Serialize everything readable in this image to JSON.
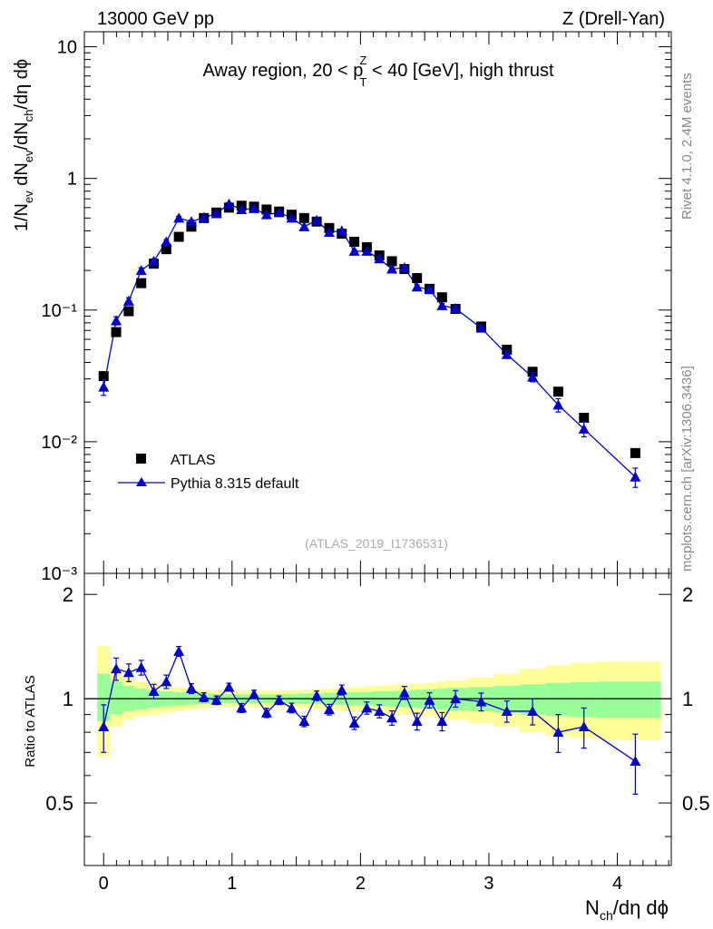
{
  "header": {
    "left": "13000 GeV pp",
    "right": "Z (Drell-Yan)"
  },
  "side_labels": {
    "rivet": "Rivet 4.1.0,  2.4M events",
    "mcplots": "mcplots.cern.ch [arXiv:1306.3436]"
  },
  "chart_data": [
    {
      "type": "scatter",
      "panel": "main",
      "title": "Away region, 20 < p_T^Z < 40 [GeV], high thrust",
      "title_parts": {
        "a": "Away region, 20 < p",
        "sup": "Z",
        "sub": "T",
        "b": " < 40 [GeV], high thrust"
      },
      "ylabel": "1/N_ev dN_ev/dN_ch/dη dϕ",
      "yscale": "log",
      "xlim": [
        -0.15,
        4.42
      ],
      "ylim": [
        0.001,
        13
      ],
      "y_tick_labels": [
        "10",
        "1",
        "10⁻¹",
        "10⁻²",
        "10⁻³"
      ],
      "watermark": "(ATLAS_2019_I1736531)",
      "legend": [
        "ATLAS",
        "Pythia 8.315 default"
      ],
      "legend_position": "lower-left",
      "colors": {
        "data": "#000000",
        "mc": "#0000cc"
      },
      "x": [
        0.0,
        0.0976,
        0.1952,
        0.2928,
        0.3904,
        0.488,
        0.5856,
        0.6832,
        0.7808,
        0.8784,
        0.976,
        1.0736,
        1.1712,
        1.2688,
        1.3664,
        1.464,
        1.5616,
        1.6592,
        1.7568,
        1.8544,
        1.952,
        2.0496,
        2.1472,
        2.2448,
        2.3424,
        2.44,
        2.5376,
        2.6352,
        2.74,
        2.94,
        3.14,
        3.34,
        3.54,
        3.74,
        4.14
      ],
      "series": [
        {
          "name": "ATLAS",
          "marker": "square",
          "values": [
            0.0315,
            0.068,
            0.098,
            0.16,
            0.225,
            0.29,
            0.36,
            0.43,
            0.5,
            0.55,
            0.6,
            0.62,
            0.61,
            0.58,
            0.56,
            0.53,
            0.5,
            0.47,
            0.42,
            0.38,
            0.33,
            0.3,
            0.26,
            0.235,
            0.205,
            0.175,
            0.145,
            0.125,
            0.102,
            0.075,
            0.05,
            0.034,
            0.024,
            0.0152,
            0.0082
          ]
        },
        {
          "name": "Pythia 8.315 default",
          "marker": "triangle",
          "values": [
            0.026,
            0.083,
            0.117,
            0.2,
            0.235,
            0.33,
            0.5,
            0.47,
            0.505,
            0.54,
            0.64,
            0.58,
            0.59,
            0.53,
            0.55,
            0.5,
            0.43,
            0.48,
            0.39,
            0.4,
            0.28,
            0.28,
            0.245,
            0.205,
            0.21,
            0.15,
            0.143,
            0.108,
            0.103,
            0.073,
            0.046,
            0.031,
            0.019,
            0.0125,
            0.0054
          ],
          "err_lo": [
            0.0035,
            0.006,
            0.007,
            0.009,
            0.01,
            0.013,
            0.015,
            0.013,
            0.013,
            0.014,
            0.015,
            0.014,
            0.014,
            0.013,
            0.013,
            0.012,
            0.011,
            0.012,
            0.01,
            0.01,
            0.008,
            0.008,
            0.007,
            0.006,
            0.006,
            0.005,
            0.005,
            0.004,
            0.004,
            0.003,
            0.003,
            0.0025,
            0.0022,
            0.0016,
            0.0009
          ],
          "err_hi": [
            0.0035,
            0.006,
            0.007,
            0.009,
            0.01,
            0.013,
            0.015,
            0.013,
            0.013,
            0.014,
            0.015,
            0.014,
            0.014,
            0.013,
            0.013,
            0.012,
            0.011,
            0.012,
            0.01,
            0.01,
            0.008,
            0.008,
            0.007,
            0.006,
            0.006,
            0.005,
            0.005,
            0.004,
            0.004,
            0.003,
            0.003,
            0.0025,
            0.0022,
            0.0016,
            0.0009
          ]
        }
      ]
    },
    {
      "type": "scatter",
      "panel": "ratio",
      "ylabel": "Ratio to ATLAS",
      "xlabel": "N_ch/dη dϕ",
      "xlim": [
        -0.15,
        4.42
      ],
      "ylim": [
        0.33,
        2.3
      ],
      "y_ticks": [
        0.5,
        1,
        2
      ],
      "y_tick_labels": [
        "0.5",
        "1",
        "2"
      ],
      "x_ticks": [
        0,
        1,
        2,
        3,
        4
      ],
      "x_tick_labels": [
        "0",
        "1",
        "2",
        "3",
        "4"
      ],
      "reference_line": 1,
      "colors": {
        "band_outer": "#ffff99",
        "band_inner": "#99ff99",
        "mc": "#0000cc",
        "line": "#000000"
      },
      "bands": {
        "x_edges": [
          -0.05,
          0.05,
          0.15,
          0.24,
          0.34,
          0.44,
          0.54,
          0.63,
          0.73,
          0.83,
          0.93,
          1.02,
          1.12,
          1.22,
          1.32,
          1.41,
          1.51,
          1.61,
          1.71,
          1.81,
          1.9,
          2.0,
          2.1,
          2.2,
          2.29,
          2.39,
          2.49,
          2.59,
          2.68,
          2.84,
          3.04,
          3.24,
          3.44,
          3.64,
          3.84,
          4.34
        ],
        "inner_lo": [
          0.86,
          0.9,
          0.92,
          0.93,
          0.94,
          0.95,
          0.955,
          0.96,
          0.965,
          0.97,
          0.97,
          0.97,
          0.97,
          0.97,
          0.97,
          0.97,
          0.965,
          0.965,
          0.96,
          0.96,
          0.955,
          0.955,
          0.95,
          0.95,
          0.945,
          0.94,
          0.935,
          0.93,
          0.925,
          0.92,
          0.91,
          0.9,
          0.89,
          0.885,
          0.88
        ],
        "inner_hi": [
          1.18,
          1.12,
          1.09,
          1.07,
          1.06,
          1.05,
          1.045,
          1.04,
          1.035,
          1.03,
          1.03,
          1.03,
          1.03,
          1.03,
          1.03,
          1.03,
          1.035,
          1.035,
          1.04,
          1.04,
          1.045,
          1.045,
          1.05,
          1.05,
          1.055,
          1.06,
          1.065,
          1.07,
          1.075,
          1.08,
          1.09,
          1.1,
          1.11,
          1.115,
          1.12
        ],
        "outer_lo": [
          0.68,
          0.83,
          0.87,
          0.89,
          0.9,
          0.91,
          0.92,
          0.93,
          0.94,
          0.945,
          0.945,
          0.945,
          0.945,
          0.945,
          0.945,
          0.945,
          0.94,
          0.935,
          0.93,
          0.925,
          0.92,
          0.915,
          0.91,
          0.905,
          0.9,
          0.895,
          0.89,
          0.88,
          0.87,
          0.85,
          0.83,
          0.8,
          0.78,
          0.77,
          0.76
        ],
        "outer_hi": [
          1.42,
          1.23,
          1.16,
          1.12,
          1.1,
          1.09,
          1.08,
          1.07,
          1.06,
          1.055,
          1.055,
          1.055,
          1.055,
          1.055,
          1.055,
          1.055,
          1.06,
          1.065,
          1.07,
          1.075,
          1.08,
          1.085,
          1.09,
          1.095,
          1.1,
          1.105,
          1.11,
          1.12,
          1.13,
          1.15,
          1.18,
          1.22,
          1.25,
          1.27,
          1.28
        ]
      },
      "series": [
        {
          "name": "Pythia 8.315 default / ATLAS",
          "marker": "triangle",
          "values": [
            0.83,
            1.22,
            1.19,
            1.23,
            1.05,
            1.12,
            1.37,
            1.07,
            1.01,
            0.99,
            1.08,
            0.94,
            1.03,
            0.91,
            0.99,
            0.94,
            0.86,
            1.02,
            0.93,
            1.06,
            0.85,
            0.94,
            0.92,
            0.88,
            1.04,
            0.86,
            0.99,
            0.86,
            1.0,
            0.98,
            0.92,
            0.92,
            0.8,
            0.83,
            0.66
          ],
          "err_lo": [
            0.13,
            0.09,
            0.07,
            0.06,
            0.05,
            0.05,
            0.045,
            0.035,
            0.03,
            0.028,
            0.028,
            0.028,
            0.028,
            0.028,
            0.028,
            0.03,
            0.03,
            0.032,
            0.033,
            0.035,
            0.035,
            0.038,
            0.04,
            0.042,
            0.045,
            0.048,
            0.05,
            0.052,
            0.055,
            0.058,
            0.065,
            0.08,
            0.1,
            0.11,
            0.13
          ],
          "err_hi": [
            0.13,
            0.09,
            0.07,
            0.06,
            0.05,
            0.05,
            0.045,
            0.035,
            0.03,
            0.028,
            0.028,
            0.028,
            0.028,
            0.028,
            0.028,
            0.03,
            0.03,
            0.032,
            0.033,
            0.035,
            0.035,
            0.038,
            0.04,
            0.042,
            0.045,
            0.048,
            0.05,
            0.052,
            0.055,
            0.058,
            0.065,
            0.08,
            0.1,
            0.11,
            0.13
          ]
        }
      ]
    }
  ]
}
